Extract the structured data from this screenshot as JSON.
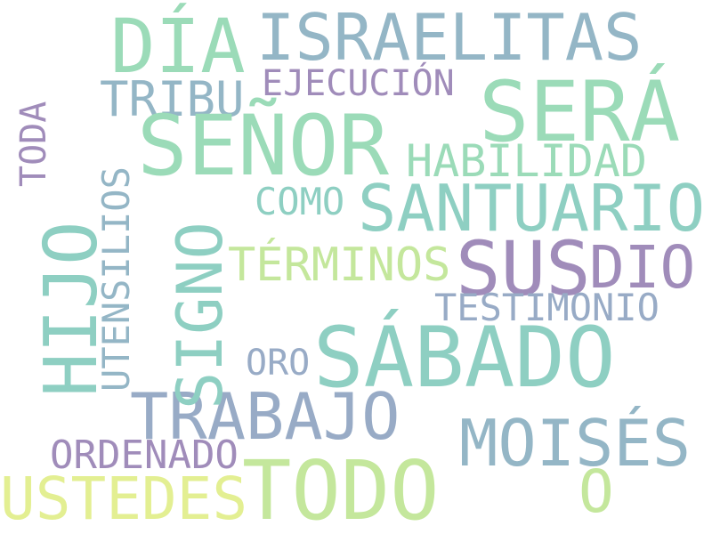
{
  "words": {
    "dia": "DÍA",
    "israelitas": "ISRAELITAS",
    "sera": "SERÁ",
    "ejecucion": "EJECUCIÓN",
    "tribu": "TRIBU",
    "senor": "SEÑOR",
    "habilidad": "HABILIDAD",
    "santuario": "SANTUARIO",
    "como": "COMO",
    "terminos": "TÉRMINOS",
    "sus": "SUS",
    "dio": "DIO",
    "testimonio": "TESTIMONIO",
    "sabado": "SÁBADO",
    "oro": "ORO",
    "trabajo": "TRABAJO",
    "moises": "MOISÉS",
    "ordenado": "ORDENADO",
    "todo": "TODO",
    "ustedes": "USTEDES",
    "o": "O",
    "toda": "TODA",
    "hijo": "HIJO",
    "utensilios": "UTENSILIOS",
    "signo": "SIGNO"
  },
  "palette": {
    "teal": "#8ecfc2",
    "mint": "#9bdbb8",
    "blue": "#94b6c6",
    "slate": "#98abc6",
    "purple": "#a08cba",
    "lime": "#c4e79c",
    "yellow": "#e3ef92",
    "background": "#ffffff"
  }
}
